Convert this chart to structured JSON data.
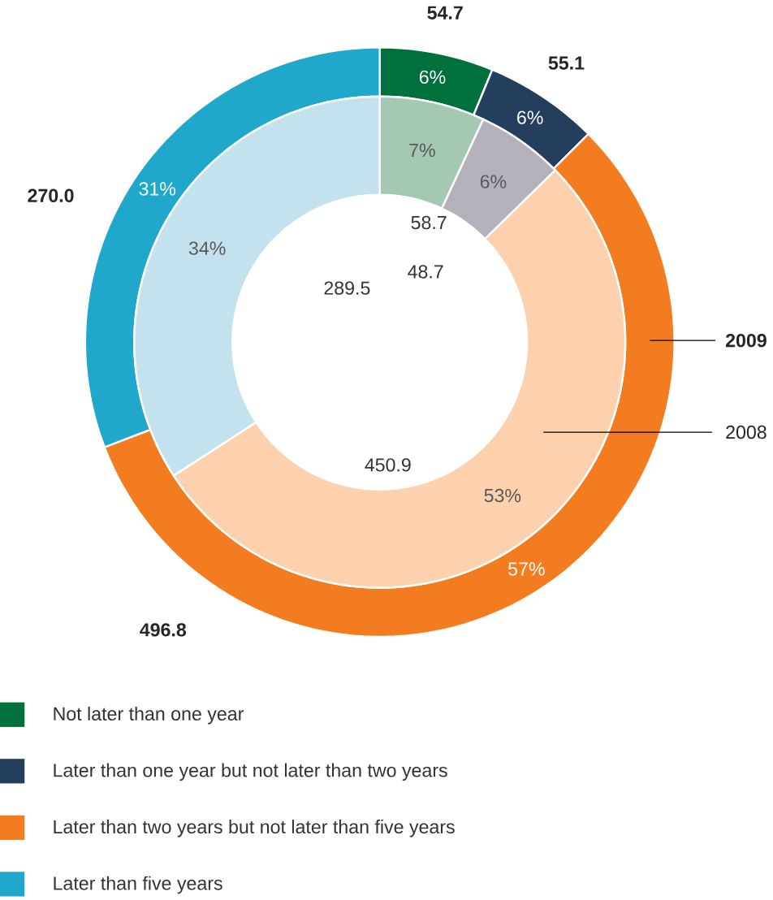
{
  "chart_data": {
    "type": "donut",
    "categories": [
      "Not later than one year",
      "Later than one year but not later than two years",
      "Later than two years but not later than five years",
      "Later than five years"
    ],
    "series": [
      {
        "name": "2009",
        "values": [
          54.7,
          55.1,
          496.8,
          270.0
        ],
        "value_labels": [
          "54.7",
          "55.1",
          "496.8",
          "270.0"
        ],
        "colors": [
          "#00703c",
          "#243f5d",
          "#f47c20",
          "#1fa8cb"
        ]
      },
      {
        "name": "2008",
        "values": [
          58.7,
          48.7,
          450.9,
          289.5
        ],
        "value_labels": [
          "58.7",
          "48.7",
          "450.9",
          "289.5"
        ],
        "colors": [
          "#a4c8b1",
          "#b4b1bd",
          "#fdd1ad",
          "#c4e2ed"
        ]
      }
    ],
    "annotations": [
      "6%",
      "6%",
      "57%",
      "31%",
      "7%",
      "6%",
      "53%",
      "34%"
    ],
    "legend": "bottom"
  }
}
